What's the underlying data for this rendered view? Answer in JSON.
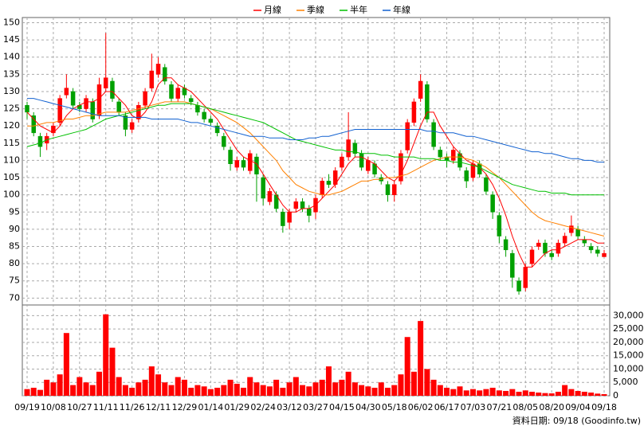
{
  "chart_data": {
    "type": "candlestick",
    "footer": "資料日期: 09/18  (Goodinfo.tw)",
    "categories": [
      "09/19",
      null,
      null,
      null,
      "10/08",
      null,
      null,
      null,
      "10/27",
      null,
      null,
      null,
      "11/11",
      null,
      null,
      null,
      "11/26",
      null,
      null,
      null,
      "12/11",
      null,
      null,
      null,
      "12/29",
      null,
      null,
      null,
      "01/14",
      null,
      null,
      null,
      "01/29",
      null,
      null,
      null,
      "02/24",
      null,
      null,
      null,
      "03/12",
      null,
      null,
      null,
      "03/27",
      null,
      null,
      null,
      "04/15",
      null,
      null,
      null,
      "04/30",
      null,
      null,
      null,
      "05/18",
      null,
      null,
      null,
      "06/02",
      null,
      null,
      null,
      "06/17",
      null,
      null,
      null,
      "07/03",
      null,
      null,
      null,
      "07/21",
      null,
      null,
      null,
      "08/05",
      null,
      null,
      null,
      "08/20",
      null,
      null,
      null,
      "09/04",
      null,
      null,
      null,
      "09/18"
    ],
    "open": [
      126,
      123,
      117,
      115,
      118,
      121,
      129,
      130,
      126,
      125,
      127,
      123,
      131,
      133,
      127,
      123,
      119,
      122,
      126,
      131,
      135,
      137,
      132,
      128,
      131,
      128,
      126,
      124,
      122,
      120,
      117,
      113,
      108,
      110,
      107,
      111,
      105,
      98,
      100,
      95,
      92,
      96,
      98,
      96,
      95,
      100,
      104,
      103,
      108,
      111,
      115,
      112,
      107,
      109,
      105,
      103,
      100,
      104,
      113,
      121,
      128,
      132,
      121,
      113,
      111,
      110,
      112,
      107,
      105,
      109,
      105,
      100,
      94,
      87,
      83,
      75,
      73,
      80,
      85,
      86,
      83,
      83,
      86,
      89,
      90,
      87,
      85,
      84,
      82
    ],
    "high": [
      127,
      124,
      118,
      118,
      121,
      129,
      135,
      131,
      127,
      129,
      128,
      134,
      147,
      134,
      128,
      124,
      122,
      127,
      131,
      141,
      140,
      138,
      133,
      132,
      132,
      129,
      127,
      125,
      123,
      121,
      118,
      114,
      111,
      111,
      113,
      112,
      106,
      102,
      101,
      96,
      96,
      99,
      99,
      97,
      100,
      105,
      106,
      108,
      112,
      124,
      116,
      113,
      111,
      110,
      106,
      104,
      104,
      113,
      122,
      128,
      135,
      133,
      122,
      114,
      112,
      114,
      113,
      108,
      110,
      110,
      106,
      101,
      95,
      88,
      84,
      76,
      80,
      85,
      87,
      87,
      84,
      87,
      89,
      94,
      91,
      88,
      86,
      85,
      84
    ],
    "low": [
      122,
      117,
      111,
      113,
      117,
      120,
      128,
      125,
      124,
      124,
      121,
      122,
      130,
      127,
      123,
      117,
      118,
      121,
      125,
      130,
      134,
      132,
      127,
      127,
      128,
      126,
      123,
      121,
      120,
      117,
      113,
      107,
      107,
      107,
      106,
      98,
      97,
      97,
      95,
      89,
      90,
      95,
      95,
      92,
      93,
      99,
      102,
      102,
      107,
      110,
      111,
      107,
      106,
      105,
      103,
      98,
      98,
      103,
      112,
      120,
      127,
      121,
      113,
      110,
      108,
      109,
      107,
      102,
      104,
      105,
      100,
      93,
      86,
      82,
      73,
      71,
      72,
      79,
      84,
      82,
      81,
      82,
      85,
      88,
      87,
      85,
      83,
      82,
      82
    ],
    "close": [
      124,
      118,
      114,
      117,
      120,
      128,
      131,
      126,
      125,
      128,
      122,
      132,
      134,
      128,
      124,
      119,
      121,
      126,
      130,
      136,
      138,
      133,
      128,
      131,
      129,
      127,
      124,
      122,
      121,
      118,
      114,
      109,
      110,
      108,
      112,
      106,
      99,
      101,
      96,
      91,
      95,
      98,
      96,
      94,
      99,
      104,
      103,
      107,
      111,
      116,
      112,
      108,
      110,
      106,
      104,
      100,
      103,
      112,
      121,
      127,
      133,
      122,
      114,
      111,
      110,
      113,
      108,
      104,
      109,
      106,
      101,
      95,
      88,
      84,
      76,
      72,
      79,
      84,
      86,
      83,
      82,
      86,
      88,
      91,
      88,
      86,
      84,
      83,
      83
    ],
    "up_color": "#ff0000",
    "down_color": "#00a000",
    "volume": {
      "color": "#ff0000",
      "values": [
        2500,
        3000,
        2200,
        6000,
        5000,
        8000,
        23500,
        4000,
        7000,
        5000,
        4000,
        9000,
        30500,
        18000,
        7000,
        4000,
        3000,
        5000,
        6000,
        11000,
        8000,
        5000,
        4000,
        7000,
        6000,
        3000,
        4000,
        3500,
        2500,
        3000,
        4000,
        6000,
        4500,
        3000,
        7000,
        5000,
        4000,
        3500,
        6000,
        3000,
        5000,
        7000,
        4000,
        3500,
        5000,
        6000,
        11000,
        5000,
        6000,
        9000,
        5000,
        4000,
        3500,
        3000,
        5000,
        3000,
        4000,
        8000,
        22000,
        9000,
        28000,
        10000,
        6000,
        4000,
        3000,
        2500,
        3500,
        2000,
        2500,
        2000,
        2500,
        3000,
        2000,
        1800,
        2500,
        1500,
        2000,
        1500,
        1200,
        1000,
        900,
        1500,
        4000,
        2500,
        1800,
        1500,
        1200,
        800,
        600
      ]
    },
    "series": [
      {
        "name": "月線",
        "color": "#ff0000",
        "values": [
          124,
          122,
          120,
          119,
          118,
          120,
          123,
          125,
          126,
          127,
          127,
          128,
          130,
          130,
          128,
          126,
          123,
          122,
          124,
          127,
          132,
          134,
          134,
          132,
          131,
          130,
          128,
          126,
          124,
          122,
          119,
          116,
          113,
          111,
          110,
          109,
          106,
          103,
          100,
          97,
          95,
          95,
          96,
          96,
          97,
          99,
          101,
          103,
          106,
          109,
          111,
          111,
          110,
          109,
          107,
          105,
          104,
          106,
          110,
          115,
          120,
          124,
          124,
          120,
          117,
          114,
          112,
          110,
          109,
          108,
          106,
          103,
          99,
          94,
          88,
          83,
          79,
          79,
          81,
          83,
          84,
          84,
          85,
          86,
          87,
          87,
          87,
          86,
          86
        ]
      },
      {
        "name": "季線",
        "color": "#ff8000",
        "values": [
          120,
          120,
          120.5,
          121,
          121,
          121.5,
          122,
          122,
          122.5,
          123,
          123,
          123.5,
          124,
          124,
          124,
          124,
          124.5,
          125,
          125.5,
          126,
          126.5,
          127,
          127,
          127,
          127,
          126.5,
          126,
          125.5,
          125,
          124,
          123,
          122,
          121,
          119.5,
          118,
          116,
          114,
          112,
          110,
          107,
          105,
          103,
          102,
          101,
          100.5,
          100,
          100,
          100.5,
          101,
          102,
          103,
          104,
          104,
          104.5,
          104.5,
          105,
          105,
          105.5,
          106,
          107,
          108,
          109,
          110,
          110.5,
          111,
          111,
          111,
          110.5,
          110,
          109,
          108,
          106.5,
          105,
          103,
          101,
          99,
          97,
          95,
          93.5,
          92.5,
          92,
          91.5,
          91,
          90.5,
          90,
          89.5,
          89,
          88.5,
          88
        ]
      },
      {
        "name": "半年",
        "color": "#00c000",
        "values": [
          114,
          114.5,
          115,
          116,
          116.5,
          117,
          117.5,
          118,
          118.5,
          119,
          120,
          121,
          122,
          122.5,
          123,
          123.5,
          124,
          124.5,
          125,
          125.5,
          126,
          126,
          126.5,
          126.5,
          126.5,
          126.5,
          126,
          125.5,
          125,
          124.5,
          124,
          123.5,
          123,
          122.5,
          122,
          121.5,
          121,
          120,
          119,
          118,
          117,
          116,
          115.5,
          115,
          114.5,
          114,
          113.5,
          113,
          113,
          112.5,
          112.5,
          112,
          112,
          112,
          111.5,
          111.5,
          111,
          111,
          111,
          111,
          110.5,
          110.5,
          110.5,
          110,
          110,
          109.5,
          109.5,
          109,
          108.5,
          108,
          107,
          106,
          105,
          104,
          103,
          102.5,
          102,
          101.5,
          101,
          101,
          100.5,
          100.5,
          100.5,
          100,
          100,
          100,
          100,
          100,
          100
        ]
      },
      {
        "name": "年線",
        "color": "#1060d0",
        "values": [
          128,
          128,
          127.5,
          127,
          126.5,
          126,
          125.5,
          125,
          124.5,
          124,
          123.5,
          123,
          123,
          123,
          123,
          122.5,
          122.5,
          122.5,
          122.5,
          122,
          122,
          122,
          122,
          122,
          121.5,
          121,
          121,
          120.5,
          120,
          119.5,
          119,
          118.5,
          118,
          117.5,
          117,
          117,
          117,
          116.5,
          116.5,
          116.5,
          116,
          116,
          116,
          116.5,
          116.5,
          117,
          117,
          117.5,
          118,
          118.5,
          119,
          119,
          119,
          119,
          119,
          119,
          119,
          119,
          119,
          119,
          119,
          118.5,
          118.5,
          118,
          118,
          118,
          117.5,
          117,
          117,
          116.5,
          116,
          115.5,
          115,
          114.5,
          114,
          113.5,
          113,
          112.5,
          112.5,
          112,
          112,
          111.5,
          111,
          110.5,
          110.5,
          110,
          110,
          109.5,
          109.5
        ]
      }
    ],
    "ylim": [
      68,
      151.5
    ],
    "yticks": [
      70,
      75,
      80,
      85,
      90,
      95,
      100,
      105,
      110,
      115,
      120,
      125,
      130,
      135,
      140,
      145,
      150
    ],
    "y2lim": [
      0,
      34000
    ],
    "y2ticks": [
      0,
      {
        "value": 5000,
        "label": "5,000"
      },
      {
        "value": 10000,
        "label": "10,000"
      },
      {
        "value": 15000,
        "label": "15,000"
      },
      {
        "value": 20000,
        "label": "20,000"
      },
      {
        "value": 25000,
        "label": "25,000"
      },
      {
        "value": 30000,
        "label": "30,000"
      }
    ],
    "grid": true
  }
}
